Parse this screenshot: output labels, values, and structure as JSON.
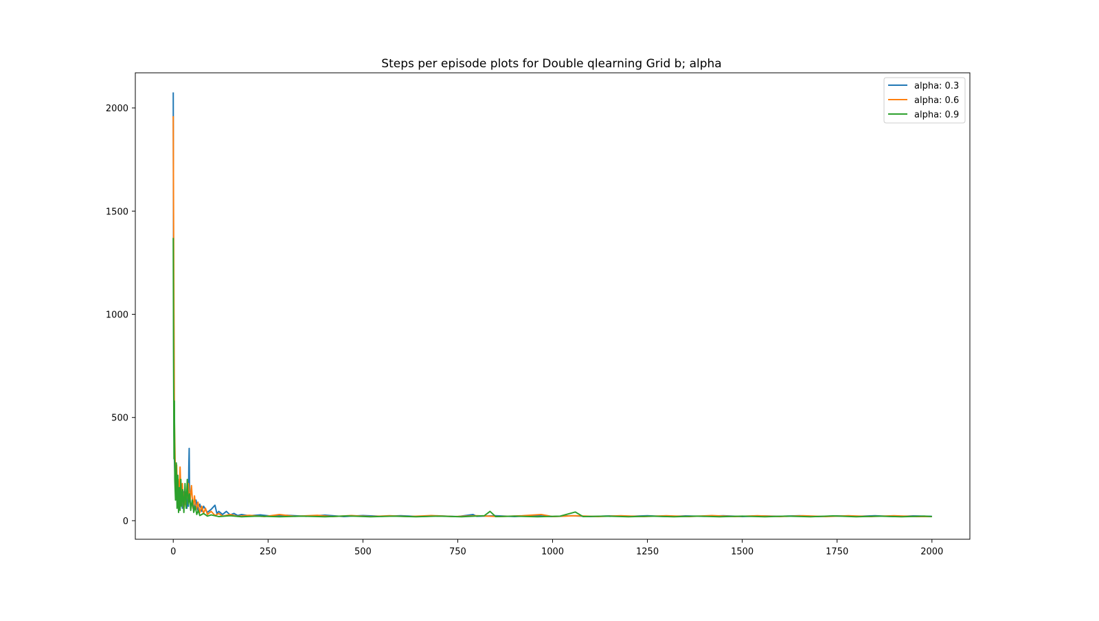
{
  "chart_data": {
    "type": "line",
    "title": "Steps per episode plots for Double qlearning Grid b; alpha",
    "xlabel": "",
    "ylabel": "",
    "xlim": [
      -100,
      2100
    ],
    "ylim": [
      -90,
      2170
    ],
    "x_ticks": [
      0,
      250,
      500,
      750,
      1000,
      1250,
      1500,
      1750,
      2000
    ],
    "y_ticks": [
      0,
      500,
      1000,
      1500,
      2000
    ],
    "grid": false,
    "legend_position": "top-right",
    "series": [
      {
        "name": "alpha: 0.3",
        "color": "#1f77b4",
        "points": [
          [
            0,
            2075
          ],
          [
            1,
            900
          ],
          [
            2,
            420
          ],
          [
            3,
            300
          ],
          [
            5,
            180
          ],
          [
            7,
            120
          ],
          [
            9,
            230
          ],
          [
            11,
            90
          ],
          [
            14,
            160
          ],
          [
            17,
            70
          ],
          [
            20,
            120
          ],
          [
            24,
            60
          ],
          [
            28,
            140
          ],
          [
            32,
            80
          ],
          [
            36,
            60
          ],
          [
            38,
            120
          ],
          [
            40,
            70
          ],
          [
            41,
            260
          ],
          [
            42,
            350
          ],
          [
            43,
            130
          ],
          [
            46,
            70
          ],
          [
            50,
            90
          ],
          [
            55,
            60
          ],
          [
            60,
            100
          ],
          [
            65,
            50
          ],
          [
            70,
            80
          ],
          [
            75,
            45
          ],
          [
            80,
            70
          ],
          [
            90,
            40
          ],
          [
            100,
            55
          ],
          [
            110,
            75
          ],
          [
            115,
            35
          ],
          [
            120,
            45
          ],
          [
            130,
            30
          ],
          [
            140,
            45
          ],
          [
            150,
            28
          ],
          [
            160,
            35
          ],
          [
            170,
            25
          ],
          [
            180,
            30
          ],
          [
            200,
            24
          ],
          [
            230,
            28
          ],
          [
            260,
            22
          ],
          [
            300,
            26
          ],
          [
            350,
            21
          ],
          [
            400,
            27
          ],
          [
            450,
            20
          ],
          [
            500,
            25
          ],
          [
            550,
            21
          ],
          [
            600,
            24
          ],
          [
            650,
            20
          ],
          [
            700,
            23
          ],
          [
            750,
            20
          ],
          [
            790,
            30
          ],
          [
            800,
            21
          ],
          [
            850,
            24
          ],
          [
            900,
            20
          ],
          [
            950,
            25
          ],
          [
            1000,
            20
          ],
          [
            1050,
            24
          ],
          [
            1100,
            20
          ],
          [
            1150,
            23
          ],
          [
            1200,
            21
          ],
          [
            1250,
            24
          ],
          [
            1300,
            20
          ],
          [
            1350,
            23
          ],
          [
            1400,
            21
          ],
          [
            1450,
            24
          ],
          [
            1500,
            20
          ],
          [
            1550,
            23
          ],
          [
            1600,
            21
          ],
          [
            1650,
            24
          ],
          [
            1700,
            20
          ],
          [
            1750,
            23
          ],
          [
            1800,
            21
          ],
          [
            1850,
            24
          ],
          [
            1900,
            20
          ],
          [
            1950,
            23
          ],
          [
            2000,
            21
          ]
        ]
      },
      {
        "name": "alpha: 0.6",
        "color": "#ff7f0e",
        "points": [
          [
            0,
            1960
          ],
          [
            1,
            1400
          ],
          [
            2,
            950
          ],
          [
            3,
            500
          ],
          [
            5,
            290
          ],
          [
            7,
            150
          ],
          [
            9,
            270
          ],
          [
            11,
            120
          ],
          [
            13,
            200
          ],
          [
            15,
            80
          ],
          [
            18,
            260
          ],
          [
            21,
            90
          ],
          [
            24,
            180
          ],
          [
            27,
            60
          ],
          [
            30,
            150
          ],
          [
            33,
            70
          ],
          [
            36,
            120
          ],
          [
            40,
            180
          ],
          [
            44,
            90
          ],
          [
            48,
            170
          ],
          [
            52,
            60
          ],
          [
            56,
            120
          ],
          [
            60,
            50
          ],
          [
            65,
            90
          ],
          [
            70,
            40
          ],
          [
            75,
            70
          ],
          [
            80,
            35
          ],
          [
            85,
            60
          ],
          [
            90,
            30
          ],
          [
            100,
            45
          ],
          [
            110,
            25
          ],
          [
            120,
            35
          ],
          [
            130,
            22
          ],
          [
            150,
            30
          ],
          [
            170,
            21
          ],
          [
            200,
            26
          ],
          [
            240,
            20
          ],
          [
            280,
            30
          ],
          [
            320,
            21
          ],
          [
            380,
            26
          ],
          [
            420,
            20
          ],
          [
            470,
            25
          ],
          [
            520,
            20
          ],
          [
            570,
            24
          ],
          [
            620,
            20
          ],
          [
            680,
            25
          ],
          [
            740,
            20
          ],
          [
            800,
            24
          ],
          [
            860,
            20
          ],
          [
            920,
            24
          ],
          [
            970,
            30
          ],
          [
            1000,
            20
          ],
          [
            1060,
            24
          ],
          [
            1120,
            20
          ],
          [
            1180,
            24
          ],
          [
            1240,
            20
          ],
          [
            1300,
            24
          ],
          [
            1360,
            20
          ],
          [
            1420,
            25
          ],
          [
            1480,
            20
          ],
          [
            1540,
            24
          ],
          [
            1600,
            20
          ],
          [
            1660,
            24
          ],
          [
            1720,
            20
          ],
          [
            1780,
            24
          ],
          [
            1840,
            20
          ],
          [
            1900,
            24
          ],
          [
            1960,
            20
          ],
          [
            2000,
            20
          ]
        ]
      },
      {
        "name": "alpha: 0.9",
        "color": "#2ca02c",
        "points": [
          [
            0,
            1370
          ],
          [
            1,
            700
          ],
          [
            2,
            300
          ],
          [
            3,
            580
          ],
          [
            4,
            200
          ],
          [
            6,
            100
          ],
          [
            8,
            280
          ],
          [
            10,
            60
          ],
          [
            12,
            220
          ],
          [
            14,
            40
          ],
          [
            16,
            160
          ],
          [
            18,
            50
          ],
          [
            20,
            200
          ],
          [
            22,
            70
          ],
          [
            25,
            150
          ],
          [
            28,
            40
          ],
          [
            31,
            180
          ],
          [
            34,
            60
          ],
          [
            37,
            200
          ],
          [
            40,
            80
          ],
          [
            43,
            130
          ],
          [
            46,
            50
          ],
          [
            50,
            100
          ],
          [
            54,
            40
          ],
          [
            58,
            70
          ],
          [
            62,
            30
          ],
          [
            66,
            50
          ],
          [
            70,
            25
          ],
          [
            80,
            35
          ],
          [
            90,
            22
          ],
          [
            100,
            28
          ],
          [
            120,
            20
          ],
          [
            150,
            24
          ],
          [
            180,
            19
          ],
          [
            220,
            22
          ],
          [
            280,
            19
          ],
          [
            340,
            22
          ],
          [
            400,
            19
          ],
          [
            460,
            23
          ],
          [
            520,
            19
          ],
          [
            580,
            22
          ],
          [
            640,
            19
          ],
          [
            700,
            22
          ],
          [
            760,
            19
          ],
          [
            820,
            24
          ],
          [
            835,
            45
          ],
          [
            850,
            20
          ],
          [
            900,
            22
          ],
          [
            960,
            19
          ],
          [
            1020,
            22
          ],
          [
            1060,
            42
          ],
          [
            1080,
            20
          ],
          [
            1140,
            22
          ],
          [
            1200,
            19
          ],
          [
            1260,
            22
          ],
          [
            1320,
            19
          ],
          [
            1380,
            22
          ],
          [
            1440,
            19
          ],
          [
            1500,
            22
          ],
          [
            1560,
            19
          ],
          [
            1620,
            22
          ],
          [
            1680,
            19
          ],
          [
            1740,
            23
          ],
          [
            1800,
            19
          ],
          [
            1860,
            22
          ],
          [
            1920,
            19
          ],
          [
            1980,
            22
          ],
          [
            2000,
            20
          ]
        ]
      }
    ]
  }
}
